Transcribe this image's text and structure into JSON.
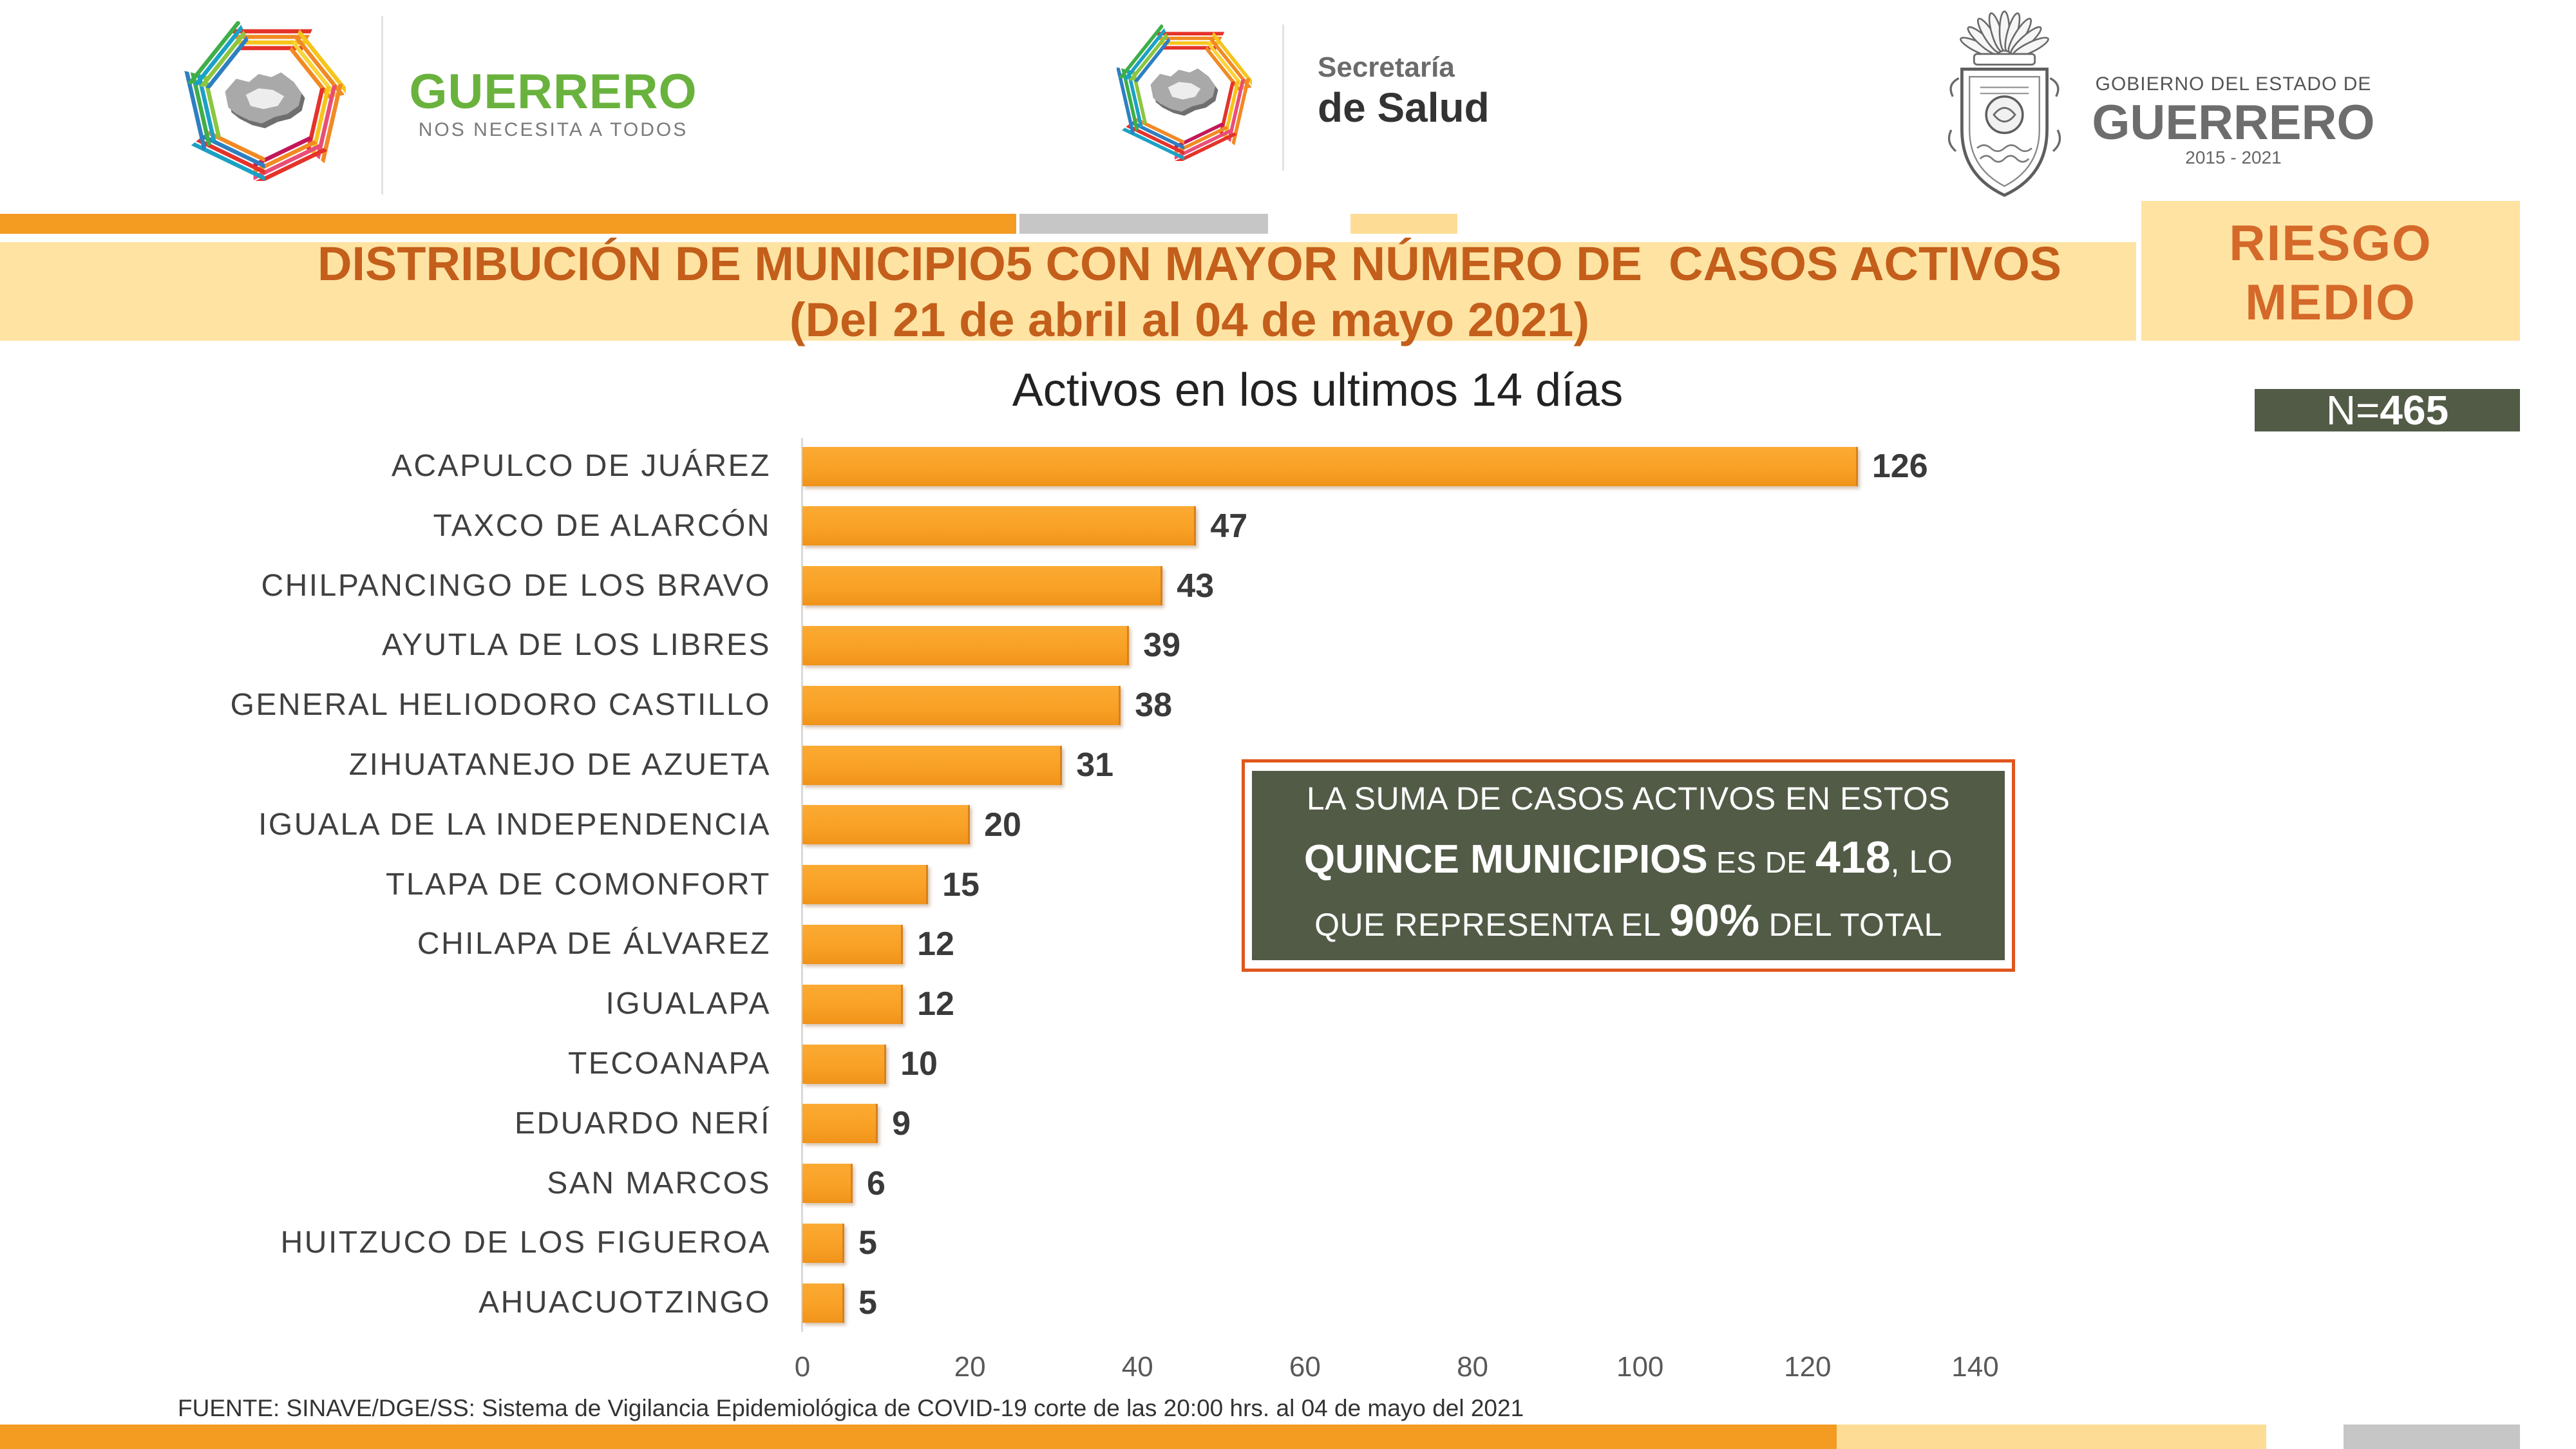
{
  "header": {
    "left_logo": {
      "icon": "guerrero-star-logo-icon",
      "title": "GUERRERO",
      "tagline": "NOS NECESITA A TODOS"
    },
    "center_logo": {
      "icon": "guerrero-star-logo-icon",
      "line1": "Secretaría",
      "line2": "de Salud"
    },
    "right_logo": {
      "icon": "coat-of-arms-icon",
      "line1": "GOBIERNO DEL ESTADO DE",
      "line2": "GUERRERO",
      "line3": "2015 - 2021"
    }
  },
  "title": {
    "line1": "DISTRIBUCIÓN DE MUNICIPIO5 CON MAYOR NÚMERO DE  CASOS ACTIVOS",
    "line2": "(Del 21 de abril al 04 de mayo 2021)"
  },
  "risk": {
    "line1": "RIESGO",
    "line2": "MEDIO"
  },
  "n_badge": {
    "prefix": "N=",
    "value": "465"
  },
  "chart_data": {
    "type": "bar",
    "orientation": "horizontal",
    "title": "Activos en los ultimos 14 días",
    "categories": [
      "ACAPULCO DE JUÁREZ",
      "TAXCO DE ALARCÓN",
      "CHILPANCINGO DE LOS BRAVO",
      "AYUTLA DE LOS LIBRES",
      "GENERAL HELIODORO CASTILLO",
      "ZIHUATANEJO DE AZUETA",
      "IGUALA DE LA INDEPENDENCIA",
      "TLAPA DE COMONFORT",
      "CHILAPA DE ÁLVAREZ",
      "IGUALAPA",
      "TECOANAPA",
      "EDUARDO NERÍ",
      "SAN MARCOS",
      "HUITZUCO DE LOS FIGUEROA",
      "AHUACUOTZINGO"
    ],
    "values": [
      126,
      47,
      43,
      39,
      38,
      31,
      20,
      15,
      12,
      12,
      10,
      9,
      6,
      5,
      5
    ],
    "xlim": [
      0,
      140
    ],
    "xticks": [
      0,
      20,
      40,
      60,
      80,
      100,
      120,
      140
    ],
    "grid": false,
    "data_labels": true
  },
  "callout": {
    "line1": "LA SUMA DE CASOS ACTIVOS EN ESTOS",
    "line2": {
      "bold_text": "QUINCE MUNICIPIOS",
      "text_a": " ES DE ",
      "total_cases": "418",
      "text_b": ", LO"
    },
    "line3": {
      "text_a": "QUE REPRESENTA EL ",
      "percent": "90%",
      "text_b": " DEL TOTAL"
    }
  },
  "footer": {
    "source": "FUENTE: SINAVE/DGE/SS: Sistema de Vigilancia Epidemiológica de COVID-19 corte de las 20:00 hrs. al 04 de mayo del 2021"
  },
  "colors": {
    "accent_orange": "#F49B22",
    "bar": "#F9A126",
    "title_text": "#C45E1B",
    "risk_text": "#D4692A",
    "band": "#FEE3A2",
    "light_band": "#FDDD96",
    "badge": "#525B46",
    "callout_border": "#E0561E",
    "brand_green": "#6AB23E",
    "neutral_gray": "#C6C6C6"
  }
}
